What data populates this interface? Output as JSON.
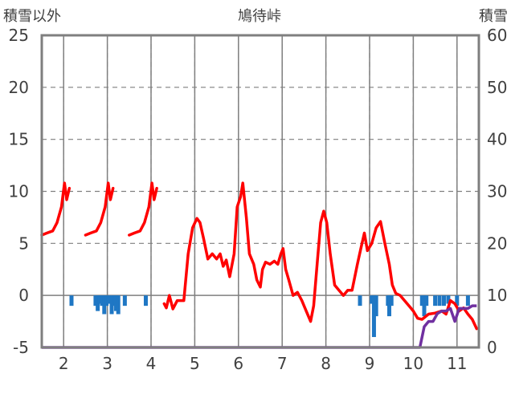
{
  "chart_data": {
    "type": "line",
    "title": "鳩待峠",
    "ylabel_left": "積雪以外",
    "ylabel_right": "積雪",
    "x_ticks": [
      "2",
      "3",
      "4",
      "5",
      "6",
      "7",
      "8",
      "9",
      "10",
      "11"
    ],
    "xlim": [
      1.5,
      11.5
    ],
    "ylim_left": [
      -5,
      25
    ],
    "ylim_right": [
      0,
      60
    ],
    "y_ticks_left": [
      "-5",
      "0",
      "5",
      "10",
      "15",
      "20",
      "25"
    ],
    "y_ticks_right": [
      "0",
      "10",
      "20",
      "30",
      "40",
      "50",
      "60"
    ],
    "grid": true,
    "colors": {
      "temperature": "#ff0000",
      "precipitation": "#1f77c4",
      "snow": "#7030a0",
      "frame": "#7f7f7f",
      "grid": "#7f7f7f"
    },
    "series": [
      {
        "axis": "left",
        "style": "line",
        "segments": [
          [
            [
              1.5,
              5.8
            ],
            [
              1.62,
              6.0
            ],
            [
              1.75,
              6.2
            ],
            [
              1.85,
              7.0
            ],
            [
              1.95,
              8.5
            ],
            [
              2.02,
              10.8
            ],
            [
              2.07,
              9.2
            ],
            [
              2.13,
              10.3
            ]
          ],
          [
            [
              2.5,
              5.8
            ],
            [
              2.62,
              6.0
            ],
            [
              2.75,
              6.2
            ],
            [
              2.85,
              7.0
            ],
            [
              2.95,
              8.5
            ],
            [
              3.02,
              10.8
            ],
            [
              3.07,
              9.2
            ],
            [
              3.13,
              10.3
            ]
          ],
          [
            [
              3.5,
              5.8
            ],
            [
              3.62,
              6.0
            ],
            [
              3.75,
              6.2
            ],
            [
              3.85,
              7.0
            ],
            [
              3.95,
              8.5
            ],
            [
              4.02,
              10.8
            ],
            [
              4.07,
              9.2
            ],
            [
              4.13,
              10.3
            ]
          ],
          [
            [
              4.3,
              -0.8
            ],
            [
              4.35,
              -1.2
            ],
            [
              4.42,
              0.0
            ],
            [
              4.5,
              -1.3
            ],
            [
              4.6,
              -0.5
            ],
            [
              4.75,
              -0.5
            ],
            [
              4.85,
              4.0
            ],
            [
              4.95,
              6.5
            ],
            [
              5.05,
              7.4
            ],
            [
              5.12,
              7.0
            ],
            [
              5.2,
              5.5
            ],
            [
              5.3,
              3.5
            ],
            [
              5.4,
              4.0
            ],
            [
              5.5,
              3.5
            ],
            [
              5.58,
              4.0
            ],
            [
              5.65,
              2.8
            ],
            [
              5.72,
              3.4
            ],
            [
              5.8,
              1.8
            ],
            [
              5.9,
              4.0
            ],
            [
              5.97,
              8.5
            ],
            [
              6.05,
              9.5
            ],
            [
              6.1,
              10.8
            ],
            [
              6.18,
              7.5
            ],
            [
              6.25,
              4.0
            ],
            [
              6.35,
              3.0
            ],
            [
              6.42,
              1.5
            ],
            [
              6.5,
              0.8
            ],
            [
              6.55,
              2.5
            ],
            [
              6.62,
              3.2
            ],
            [
              6.72,
              3.0
            ],
            [
              6.82,
              3.3
            ],
            [
              6.9,
              3.0
            ],
            [
              6.97,
              4.0
            ],
            [
              7.02,
              4.5
            ],
            [
              7.08,
              2.5
            ],
            [
              7.15,
              1.5
            ],
            [
              7.25,
              0.0
            ],
            [
              7.35,
              0.3
            ],
            [
              7.45,
              -0.5
            ],
            [
              7.55,
              -1.5
            ],
            [
              7.65,
              -2.5
            ],
            [
              7.72,
              -1.0
            ],
            [
              7.8,
              3.0
            ],
            [
              7.88,
              7.0
            ],
            [
              7.95,
              8.1
            ],
            [
              8.02,
              7.0
            ],
            [
              8.1,
              4.0
            ],
            [
              8.2,
              1.0
            ],
            [
              8.3,
              0.5
            ],
            [
              8.4,
              0.0
            ],
            [
              8.5,
              0.5
            ],
            [
              8.6,
              0.5
            ],
            [
              8.72,
              3.0
            ],
            [
              8.8,
              4.5
            ],
            [
              8.88,
              6.0
            ],
            [
              8.95,
              4.3
            ],
            [
              9.05,
              5.0
            ],
            [
              9.15,
              6.5
            ],
            [
              9.25,
              7.1
            ],
            [
              9.35,
              5.0
            ],
            [
              9.45,
              3.0
            ],
            [
              9.52,
              1.0
            ],
            [
              9.6,
              0.2
            ],
            [
              9.7,
              0.0
            ],
            [
              9.8,
              -0.5
            ],
            [
              9.9,
              -1.0
            ],
            [
              10.0,
              -1.5
            ],
            [
              10.1,
              -2.2
            ],
            [
              10.2,
              -2.3
            ],
            [
              10.35,
              -1.8
            ],
            [
              10.5,
              -1.7
            ],
            [
              10.65,
              -1.5
            ],
            [
              10.75,
              -1.8
            ],
            [
              10.85,
              -0.5
            ],
            [
              10.95,
              -0.8
            ],
            [
              11.05,
              -1.5
            ],
            [
              11.15,
              -1.2
            ],
            [
              11.25,
              -1.8
            ],
            [
              11.35,
              -2.3
            ],
            [
              11.45,
              -3.2
            ]
          ]
        ]
      },
      {
        "axis": "left",
        "style": "bar-down",
        "bars": [
          [
            2.18,
            1.0
          ],
          [
            2.73,
            1.0
          ],
          [
            2.78,
            1.5
          ],
          [
            2.83,
            0.8
          ],
          [
            2.88,
            1.0
          ],
          [
            2.93,
            1.8
          ],
          [
            2.98,
            1.0
          ],
          [
            3.03,
            0.8
          ],
          [
            3.1,
            1.8
          ],
          [
            3.15,
            1.0
          ],
          [
            3.2,
            1.5
          ],
          [
            3.25,
            1.8
          ],
          [
            3.4,
            1.0
          ],
          [
            3.88,
            1.0
          ],
          [
            8.78,
            1.0
          ],
          [
            9.05,
            0.8
          ],
          [
            9.1,
            4.0
          ],
          [
            9.15,
            2.0
          ],
          [
            9.42,
            1.0
          ],
          [
            9.45,
            2.0
          ],
          [
            9.5,
            1.0
          ],
          [
            10.2,
            1.0
          ],
          [
            10.25,
            2.0
          ],
          [
            10.3,
            1.0
          ],
          [
            10.5,
            1.0
          ],
          [
            10.6,
            1.0
          ],
          [
            10.7,
            1.0
          ],
          [
            10.8,
            0.8
          ],
          [
            11.0,
            1.0
          ],
          [
            11.25,
            1.0
          ]
        ]
      },
      {
        "axis": "right",
        "style": "line",
        "points": [
          [
            1.5,
            0
          ],
          [
            10.15,
            0
          ],
          [
            10.25,
            4.0
          ],
          [
            10.35,
            5.0
          ],
          [
            10.45,
            5.0
          ],
          [
            10.55,
            6.5
          ],
          [
            10.65,
            7.0
          ],
          [
            10.75,
            7.0
          ],
          [
            10.85,
            7.5
          ],
          [
            10.95,
            5.0
          ],
          [
            11.05,
            7.5
          ],
          [
            11.15,
            7.5
          ],
          [
            11.25,
            7.5
          ],
          [
            11.35,
            8.0
          ],
          [
            11.45,
            8.0
          ]
        ]
      }
    ]
  }
}
